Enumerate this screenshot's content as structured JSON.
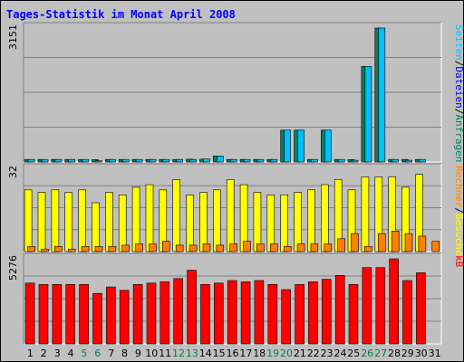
{
  "colors": {
    "title": "#0000ff",
    "anfragen": "#008060",
    "dateien": "#00c0ff",
    "seiten": "#008080",
    "besuche": "#ffff00",
    "rechner": "#ff8000",
    "kb": "#ff0000",
    "weekend_label": "#008040",
    "weekday_label": "#000000"
  },
  "chart_data": {
    "title": "Tages-Statistik im Monat April 2008",
    "type": "bar",
    "categories": [
      "1",
      "2",
      "3",
      "4",
      "5",
      "6",
      "7",
      "8",
      "9",
      "10",
      "11",
      "12",
      "13",
      "14",
      "15",
      "16",
      "17",
      "18",
      "19",
      "20",
      "21",
      "22",
      "23",
      "24",
      "25",
      "26",
      "27",
      "28",
      "29",
      "30",
      "31"
    ],
    "weekend_days": [
      "5",
      "6",
      "12",
      "13",
      "19",
      "20",
      "26",
      "27"
    ],
    "panels": [
      {
        "id": "requests",
        "max_label": "3151",
        "ylim": [
          0,
          3151
        ],
        "legend": [
          {
            "text": "Anfragen",
            "color": "#008060"
          },
          {
            "text": "/",
            "color": "#000000"
          },
          {
            "text": "Dateien",
            "color": "#0000ff"
          },
          {
            "text": "/",
            "color": "#000000"
          },
          {
            "text": "Seiten",
            "color": "#00c0ff"
          }
        ],
        "series": [
          {
            "name": "Anfragen",
            "color": "#008060",
            "values": [
              60,
              60,
              60,
              60,
              60,
              55,
              60,
              60,
              60,
              60,
              60,
              60,
              65,
              65,
              140,
              60,
              60,
              60,
              60,
              750,
              750,
              60,
              750,
              60,
              55,
              2250,
              3151,
              60,
              60,
              60,
              null
            ]
          },
          {
            "name": "Dateien",
            "color": "#00c0ff",
            "values": [
              60,
              60,
              60,
              60,
              60,
              30,
              60,
              60,
              60,
              60,
              60,
              60,
              60,
              70,
              140,
              60,
              60,
              60,
              60,
              750,
              750,
              60,
              750,
              60,
              40,
              2250,
              3151,
              60,
              40,
              60,
              null
            ]
          }
        ]
      },
      {
        "id": "visits",
        "max_label": "32",
        "ylim": [
          0,
          32
        ],
        "legend": [
          {
            "text": "Besuche",
            "color": "#ffff00"
          },
          {
            "text": "/",
            "color": "#000000"
          },
          {
            "text": "Rechner",
            "color": "#ff8000"
          }
        ],
        "series": [
          {
            "name": "Besuche",
            "color": "#ffff00",
            "values": [
              24,
              23,
              24,
              23,
              24,
              19,
              23,
              22,
              25,
              26,
              24,
              28,
              22,
              23,
              24,
              28,
              26,
              23,
              22,
              22,
              23,
              24,
              26,
              28,
              24,
              29,
              29,
              29,
              25,
              30,
              null
            ]
          },
          {
            "name": "Rechner",
            "color": "#ff8000",
            "values": [
              2,
              1,
              2,
              1,
              2,
              2,
              2,
              2.5,
              3,
              3,
              4,
              2.5,
              2.5,
              3,
              2.5,
              3,
              4,
              3,
              3,
              2,
              3,
              3,
              3,
              5,
              7,
              2,
              7,
              8,
              7,
              6,
              4
            ]
          }
        ]
      },
      {
        "id": "kb",
        "max_label": "5276",
        "ylim": [
          0,
          5276
        ],
        "legend": [
          {
            "text": "kB",
            "color": "#ff0000"
          }
        ],
        "series": [
          {
            "name": "kB",
            "color": "#ff0000",
            "values": [
              3770,
              3690,
              3690,
              3690,
              3690,
              3130,
              3530,
              3320,
              3690,
              3770,
              3850,
              4050,
              4570,
              3690,
              3770,
              3930,
              3850,
              3930,
              3690,
              3370,
              3690,
              3850,
              4010,
              4250,
              3690,
              4730,
              4730,
              5276,
              3930,
              4410,
              null
            ]
          }
        ]
      }
    ]
  }
}
